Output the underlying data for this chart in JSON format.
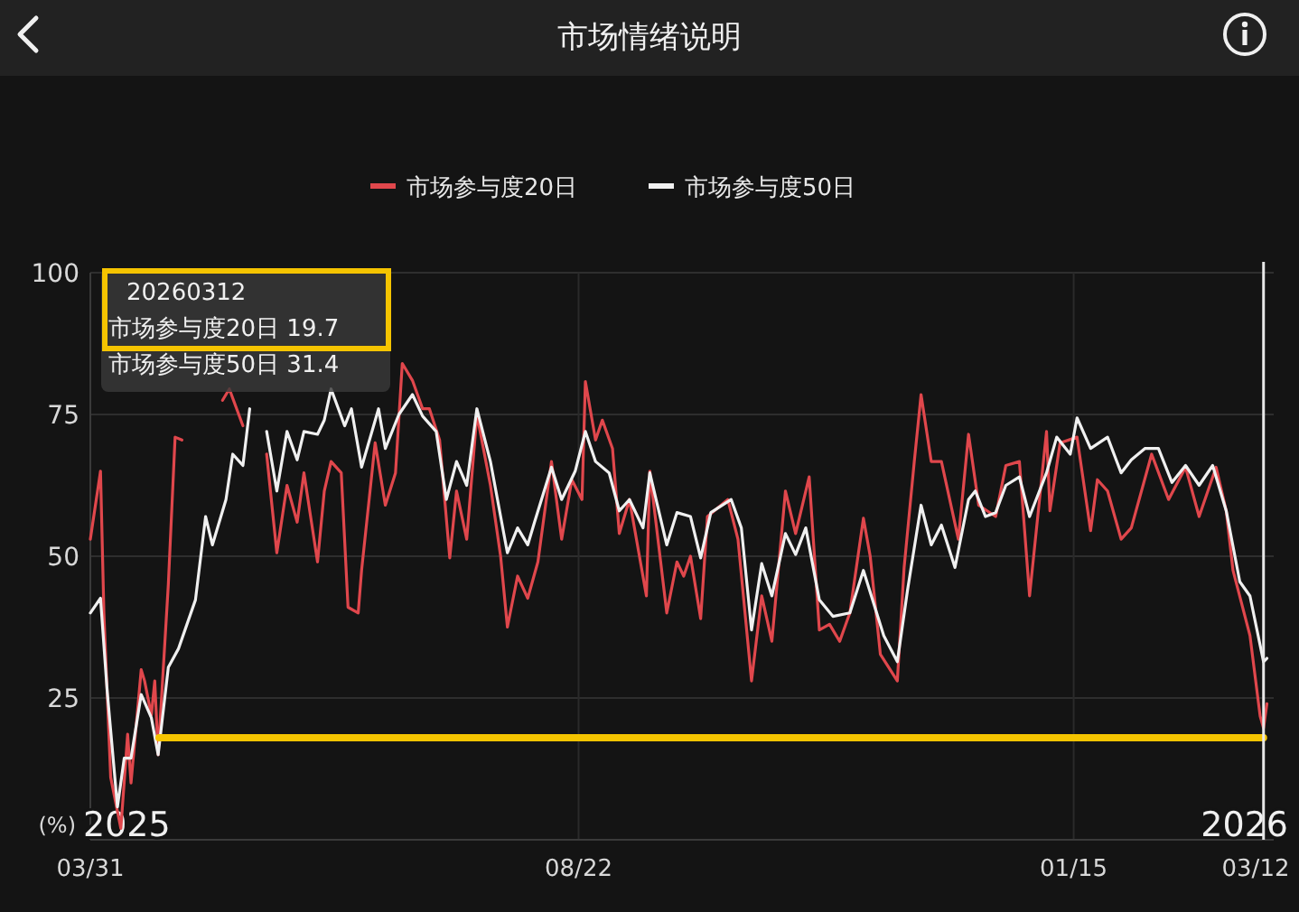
{
  "chart_data": {
    "type": "line",
    "title": "市场情绪说明",
    "ylabel": "(%)",
    "legend": "top",
    "grid": true,
    "xlim": [
      "2025-03-31",
      "2026-03-15"
    ],
    "ylim": [
      0,
      100
    ],
    "yticks": [
      25,
      50,
      75,
      100
    ],
    "xticks": [
      {
        "value": "2025-03-31",
        "label": "03/31"
      },
      {
        "value": "2025-08-22",
        "label": "08/22"
      },
      {
        "value": "2026-01-15",
        "label": "01/15"
      },
      {
        "value": "2026-03-12",
        "label": "03/12"
      }
    ],
    "annotations": [
      "20260312",
      "市场参与度20日  19.7",
      "市场参与度50日  31.4",
      "2025",
      "2026"
    ],
    "ref_lines": [
      {
        "axis": "y",
        "value": 18,
        "color": "#f5c400"
      },
      {
        "axis": "x",
        "value": "2026-03-12",
        "color": "#e8e8e8"
      }
    ],
    "series": [
      {
        "name": "市场参与度20日",
        "color": "#e0474c",
        "x": [
          "2025-03-31",
          "2025-04-03",
          "2025-04-04",
          "2025-04-06",
          "2025-04-09",
          "2025-04-11",
          "2025-04-12",
          "2025-04-15",
          "2025-04-16",
          "2025-04-18",
          "2025-04-19",
          "2025-04-20",
          "2025-04-23",
          "2025-04-25",
          "2025-04-27",
          "2025-04-29",
          "2025-05-01",
          "2025-05-03",
          "2025-05-06",
          "2025-05-09",
          "2025-05-11",
          "2025-05-15",
          "2025-05-18",
          "2025-05-22",
          "2025-05-25",
          "2025-05-28",
          "2025-05-31",
          "2025-06-02",
          "2025-06-06",
          "2025-06-08",
          "2025-06-10",
          "2025-06-13",
          "2025-06-15",
          "2025-06-18",
          "2025-06-19",
          "2025-06-23",
          "2025-06-26",
          "2025-06-29",
          "2025-07-01",
          "2025-07-04",
          "2025-07-07",
          "2025-07-09",
          "2025-07-12",
          "2025-07-15",
          "2025-07-17",
          "2025-07-20",
          "2025-07-23",
          "2025-07-27",
          "2025-07-30",
          "2025-08-01",
          "2025-08-04",
          "2025-08-07",
          "2025-08-10",
          "2025-08-14",
          "2025-08-17",
          "2025-08-20",
          "2025-08-23",
          "2025-08-24",
          "2025-08-27",
          "2025-08-29",
          "2025-09-01",
          "2025-09-03",
          "2025-09-06",
          "2025-09-11",
          "2025-09-12",
          "2025-09-17",
          "2025-09-20",
          "2025-09-22",
          "2025-09-24",
          "2025-09-27",
          "2025-09-29",
          "2025-10-05",
          "2025-10-08",
          "2025-10-12",
          "2025-10-15",
          "2025-10-18",
          "2025-10-22",
          "2025-10-25",
          "2025-10-29",
          "2025-11-01",
          "2025-11-04",
          "2025-11-07",
          "2025-11-10",
          "2025-11-14",
          "2025-11-16",
          "2025-11-19",
          "2025-11-24",
          "2025-11-26",
          "2025-11-29",
          "2025-12-01",
          "2025-12-04",
          "2025-12-07",
          "2025-12-12",
          "2025-12-15",
          "2025-12-18",
          "2025-12-23",
          "2025-12-26",
          "2025-12-30",
          "2026-01-02",
          "2026-01-07",
          "2026-01-08",
          "2026-01-11",
          "2026-01-16",
          "2026-01-20",
          "2026-01-22",
          "2026-01-25",
          "2026-01-29",
          "2026-02-01",
          "2026-02-07",
          "2026-02-12",
          "2026-02-17",
          "2026-02-21",
          "2026-02-26",
          "2026-03-01",
          "2026-03-03",
          "2026-03-08",
          "2026-03-11",
          "2026-03-12",
          "2026-03-13"
        ],
        "values": [
          53,
          65,
          40,
          11,
          2,
          18.6,
          10,
          30,
          28,
          22,
          28,
          15,
          45,
          71,
          70.5,
          null,
          null,
          null,
          null,
          77.5,
          79.5,
          73,
          null,
          68,
          50.6,
          62.5,
          56,
          64.7,
          49,
          61.5,
          66.7,
          64.7,
          41,
          40,
          47.5,
          70,
          59,
          64.7,
          84,
          81,
          76,
          76,
          70.5,
          49.7,
          61.5,
          53,
          75,
          62.5,
          50,
          37.5,
          46.5,
          42.6,
          49,
          66.7,
          53,
          63.5,
          60,
          80.8,
          70.5,
          74,
          69,
          54,
          60,
          43,
          65,
          40,
          49,
          46.5,
          50,
          39,
          57,
          60,
          53,
          28,
          43,
          35,
          61.5,
          54,
          64,
          37,
          38,
          35,
          40,
          56.7,
          50,
          32.7,
          28,
          48,
          66.7,
          78.5,
          66.7,
          66.7,
          53,
          71.5,
          59,
          57,
          66,
          66.7,
          43,
          72,
          58,
          70,
          71,
          54.5,
          63.5,
          61.5,
          53,
          55,
          68,
          60,
          65.7,
          57,
          65.7,
          58,
          47.5,
          36,
          21.8,
          19.7,
          24
        ]
      },
      {
        "name": "市场参与度50日",
        "color": "#f0f0f0",
        "x": [
          "2025-03-31",
          "2025-04-03",
          "2025-04-05",
          "2025-04-08",
          "2025-04-10",
          "2025-04-12",
          "2025-04-15",
          "2025-04-18",
          "2025-04-20",
          "2025-04-23",
          "2025-04-26",
          "2025-05-01",
          "2025-05-04",
          "2025-05-06",
          "2025-05-10",
          "2025-05-12",
          "2025-05-15",
          "2025-05-17",
          "2025-05-19",
          "2025-05-22",
          "2025-05-25",
          "2025-05-28",
          "2025-05-31",
          "2025-06-02",
          "2025-06-06",
          "2025-06-08",
          "2025-06-10",
          "2025-06-14",
          "2025-06-16",
          "2025-06-19",
          "2025-06-24",
          "2025-06-26",
          "2025-06-30",
          "2025-07-04",
          "2025-07-07",
          "2025-07-11",
          "2025-07-14",
          "2025-07-17",
          "2025-07-20",
          "2025-07-23",
          "2025-07-27",
          "2025-08-01",
          "2025-08-04",
          "2025-08-07",
          "2025-08-09",
          "2025-08-14",
          "2025-08-17",
          "2025-08-21",
          "2025-08-24",
          "2025-08-27",
          "2025-08-31",
          "2025-09-03",
          "2025-09-06",
          "2025-09-10",
          "2025-09-12",
          "2025-09-17",
          "2025-09-20",
          "2025-09-24",
          "2025-09-27",
          "2025-09-30",
          "2025-10-06",
          "2025-10-09",
          "2025-10-12",
          "2025-10-15",
          "2025-10-18",
          "2025-10-22",
          "2025-10-25",
          "2025-10-28",
          "2025-11-01",
          "2025-11-05",
          "2025-11-10",
          "2025-11-14",
          "2025-11-20",
          "2025-11-24",
          "2025-11-27",
          "2025-12-01",
          "2025-12-04",
          "2025-12-07",
          "2025-12-11",
          "2025-12-15",
          "2025-12-17",
          "2025-12-20",
          "2025-12-23",
          "2025-12-26",
          "2025-12-30",
          "2026-01-02",
          "2026-01-07",
          "2026-01-10",
          "2026-01-14",
          "2026-01-16",
          "2026-01-20",
          "2026-01-25",
          "2026-01-29",
          "2026-02-01",
          "2026-02-05",
          "2026-02-09",
          "2026-02-13",
          "2026-02-17",
          "2026-02-21",
          "2026-02-25",
          "2026-03-01",
          "2026-03-05",
          "2026-03-08",
          "2026-03-12",
          "2026-03-13"
        ],
        "values": [
          40,
          42.6,
          26,
          5.8,
          14.4,
          14.4,
          25.6,
          21.5,
          15,
          30.4,
          33.7,
          42.3,
          57,
          52,
          60,
          68,
          66,
          76,
          null,
          72,
          61.5,
          72,
          67,
          72,
          71.5,
          74,
          79.5,
          73,
          76,
          65.7,
          76,
          69,
          75,
          78.5,
          74.7,
          72,
          60,
          66.7,
          62.5,
          76,
          66.7,
          50.6,
          55,
          52,
          56,
          65.7,
          60,
          65,
          72,
          66.7,
          64.7,
          58,
          60,
          55,
          64.7,
          52,
          57.7,
          57,
          49.7,
          57.7,
          60,
          55,
          37,
          48.7,
          43,
          54,
          50.3,
          55,
          42.3,
          39.4,
          40,
          47.5,
          36,
          31.4,
          44,
          59,
          52,
          55.5,
          48,
          60,
          61.5,
          57,
          57.7,
          62.5,
          64,
          57,
          64.7,
          71,
          68,
          74.4,
          69,
          71,
          64.7,
          67,
          69,
          69,
          63,
          66,
          62.5,
          66,
          58,
          45.5,
          43,
          31.4,
          32
        ]
      }
    ]
  }
}
